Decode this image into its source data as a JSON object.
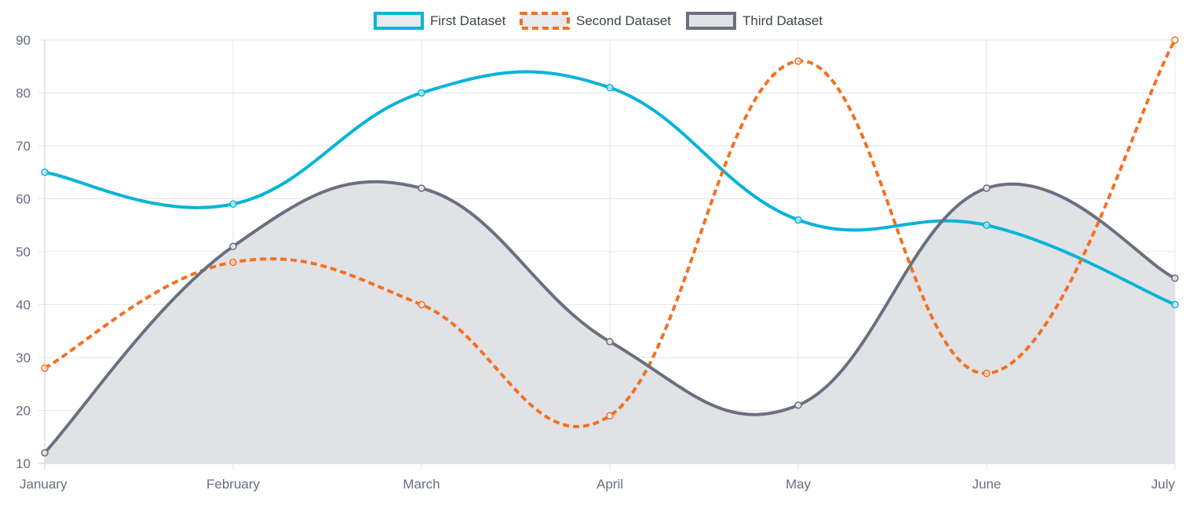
{
  "chart_data": {
    "type": "line",
    "categories": [
      "January",
      "February",
      "March",
      "April",
      "May",
      "June",
      "July"
    ],
    "ylim": [
      10,
      90
    ],
    "y_ticks": [
      10,
      20,
      30,
      40,
      50,
      60,
      70,
      80,
      90
    ],
    "grid": true,
    "legend_position": "top-center",
    "series": [
      {
        "name": "First Dataset",
        "values": [
          65,
          59,
          80,
          81,
          56,
          55,
          40
        ],
        "color": "#00b4d8",
        "line_style": "solid",
        "fill": false
      },
      {
        "name": "Second Dataset",
        "values": [
          28,
          48,
          40,
          19,
          86,
          27,
          90
        ],
        "color": "#f37021",
        "line_style": "dashed",
        "fill": false
      },
      {
        "name": "Third Dataset",
        "values": [
          12,
          51,
          62,
          33,
          21,
          62,
          45
        ],
        "color": "#6b7080",
        "line_style": "solid",
        "fill": true,
        "fill_color": "#e0e2e6"
      }
    ]
  }
}
